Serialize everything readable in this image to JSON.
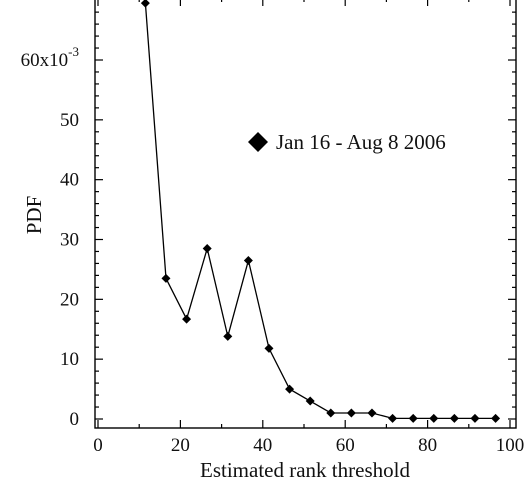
{
  "chart_data": {
    "type": "line",
    "xlabel": "Estimated rank threshold",
    "ylabel": "PDF",
    "xlim": [
      0,
      100
    ],
    "ylim": [
      0,
      0.07
    ],
    "x_ticks": [
      0,
      20,
      40,
      60,
      80,
      100
    ],
    "x_tick_labels": [
      "0",
      "20",
      "40",
      "60",
      "80",
      "100"
    ],
    "y_ticks": [
      0,
      0.01,
      0.02,
      0.03,
      0.04,
      0.05,
      0.06
    ],
    "y_tick_labels": [
      "0",
      "10",
      "20",
      "30",
      "40",
      "50",
      "60x10"
    ],
    "y_tick_exponent": "-3",
    "grid": false,
    "legend_placement": "center-right",
    "series": [
      {
        "name": "Jan 16 - Aug 8 2006",
        "marker": "diamond",
        "color": "#000000",
        "x": [
          11.5,
          16.5,
          21.5,
          26.5,
          31.5,
          36.5,
          41.5,
          46.5,
          51.5,
          56.5,
          61.5,
          66.5,
          71.5,
          76.5,
          81.5,
          86.5,
          91.5,
          96.5
        ],
        "y": [
          0.0695,
          0.0235,
          0.0167,
          0.0285,
          0.0138,
          0.0265,
          0.0118,
          0.005,
          0.003,
          0.001,
          0.001,
          0.001,
          0.0001,
          0.0001,
          0.0001,
          0.0001,
          0.0001,
          0.0001
        ]
      }
    ]
  }
}
